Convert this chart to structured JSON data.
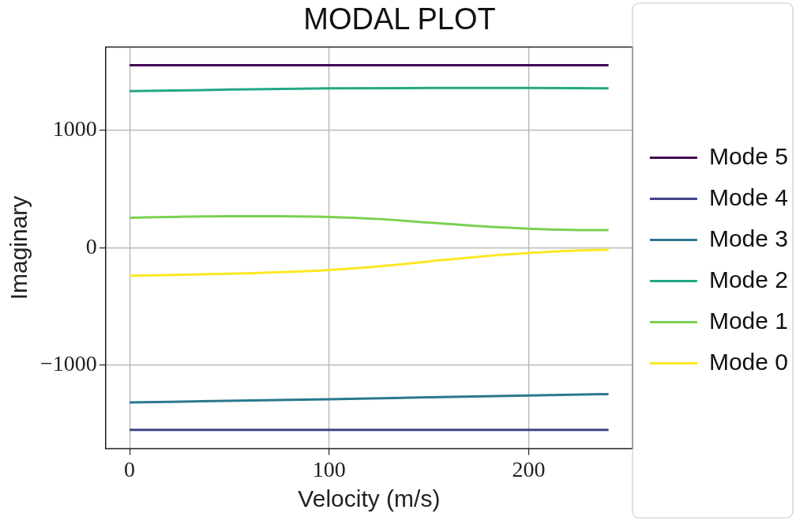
{
  "chart_data": {
    "type": "line",
    "title": "MODAL PLOT",
    "xlabel": "Velocity (m/s)",
    "ylabel": "Imaginary",
    "xlim": [
      -12,
      252
    ],
    "xticks": [
      0,
      100,
      200
    ],
    "ylim": [
      -1710,
      1710
    ],
    "yticks": [
      -1000,
      0,
      1000
    ],
    "grid": true,
    "legend": "right",
    "marker": "none",
    "line_style": "solid",
    "series": [
      {
        "name": "Mode 5",
        "color": "#440154",
        "x": [
          0,
          240
        ],
        "values": [
          1555,
          1555
        ]
      },
      {
        "name": "Mode 4",
        "color": "#414487",
        "x": [
          0,
          240
        ],
        "values": [
          -1551,
          -1551
        ]
      },
      {
        "name": "Mode 3",
        "color": "#2a788e",
        "x": [
          0,
          100,
          200,
          240
        ],
        "values": [
          -1317,
          -1289,
          -1257,
          -1246
        ]
      },
      {
        "name": "Mode 2",
        "color": "#22a884",
        "x": [
          0,
          50,
          100,
          150,
          200,
          240
        ],
        "values": [
          1335,
          1348,
          1359,
          1362,
          1362,
          1359
        ]
      },
      {
        "name": "Mode 1",
        "color": "#7ad151",
        "x": [
          0,
          25,
          50,
          75,
          100,
          125,
          150,
          175,
          200,
          220,
          240
        ],
        "values": [
          256,
          265,
          270,
          269,
          263,
          245,
          215,
          185,
          163,
          153,
          151
        ]
      },
      {
        "name": "Mode 0",
        "color": "#fde725",
        "x": [
          0,
          50,
          100,
          125,
          150,
          175,
          200,
          220,
          240
        ],
        "values": [
          -238,
          -221,
          -188,
          -158,
          -116,
          -75,
          -44,
          -25,
          -16
        ]
      }
    ]
  }
}
